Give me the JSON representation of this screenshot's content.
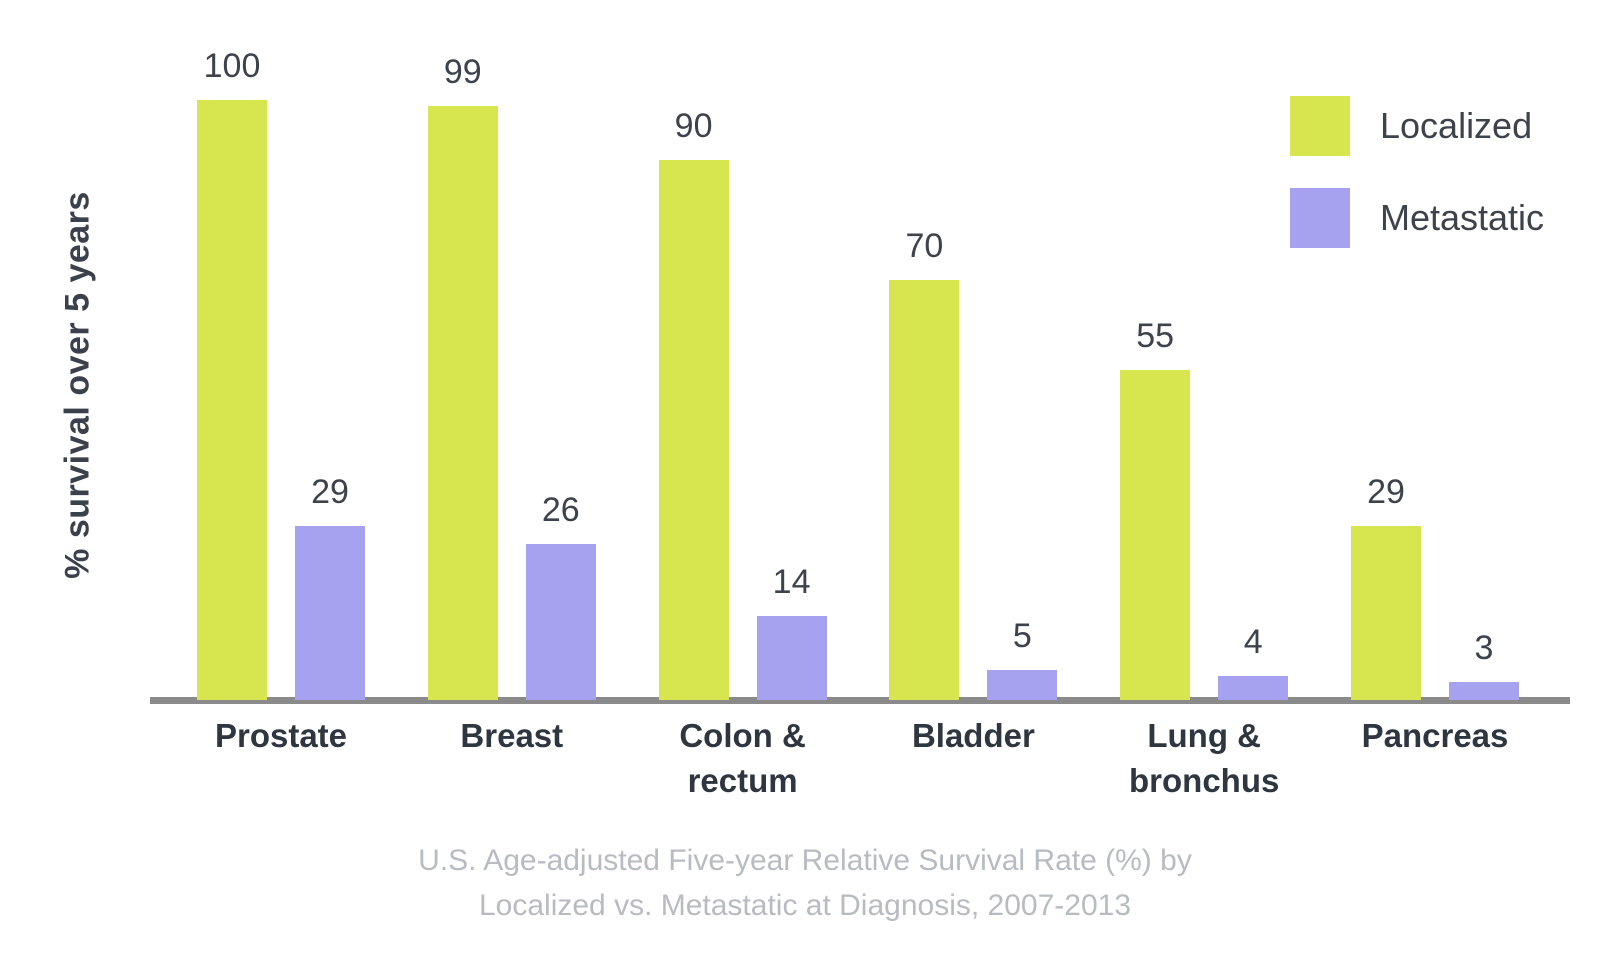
{
  "chart_data": {
    "type": "bar",
    "categories": [
      "Prostate",
      "Breast",
      "Colon & rectum",
      "Bladder",
      "Lung & bronchus",
      "Pancreas"
    ],
    "series": [
      {
        "name": "Localized",
        "color": "#d7e64e",
        "values": [
          100,
          99,
          90,
          70,
          55,
          29
        ]
      },
      {
        "name": "Metastatic",
        "color": "#a7a2ef",
        "values": [
          29,
          26,
          14,
          5,
          4,
          3
        ]
      }
    ],
    "title": "",
    "xlabel": "",
    "ylabel": "% survival over 5 years",
    "ylim": [
      0,
      100
    ],
    "grid": false,
    "legend_position": "top-right",
    "bar_value_labels": true,
    "caption_lines": [
      "U.S. Age-adjusted Five-year Relative Survival Rate (%) by",
      "Localized vs. Metastatic at Diagnosis, 2007-2013"
    ]
  },
  "colors": {
    "localized": "#d7e64e",
    "metastatic": "#a7a2ef",
    "axis_line": "#8a8a8a",
    "value_label": "#3d434c",
    "category_label": "#2e3640",
    "caption": "#b7bbc2",
    "background": "#ffffff"
  }
}
